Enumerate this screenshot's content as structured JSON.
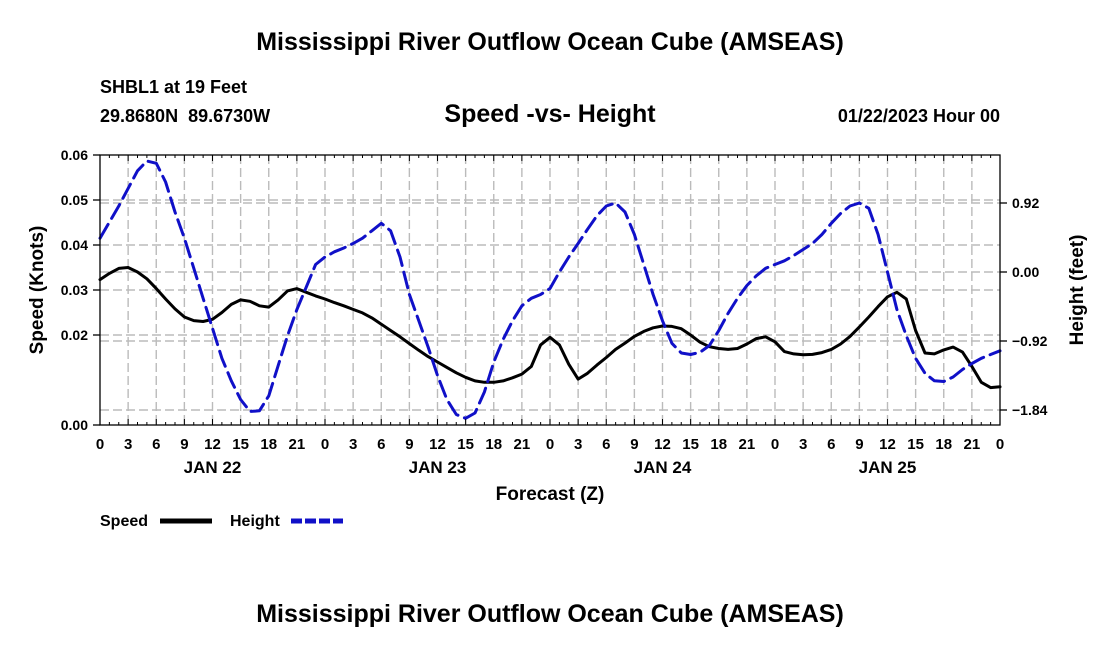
{
  "header": {
    "title": "Mississippi River Outflow Ocean Cube (AMSEAS)",
    "station": "SHBL1 at 19 Feet",
    "coords": "29.8680N  89.6730W",
    "subtitle": "Speed -vs- Height",
    "date": "01/22/2023 Hour 00"
  },
  "footer": {
    "title": "Mississippi River Outflow Ocean Cube (AMSEAS)"
  },
  "colors": {
    "speed": "#000000",
    "height": "#1010c8",
    "grid": "#bbbbbb"
  },
  "chart_data": {
    "type": "line",
    "title": "Speed -vs- Height",
    "xlabel": "Forecast (Z)",
    "ylabel": "Speed (Knots)",
    "y2label": "Height (feet)",
    "xlim": [
      0,
      96
    ],
    "ylim": [
      0,
      0.06
    ],
    "y2lim": [
      -2.04,
      1.56
    ],
    "x_tick_labels": [
      "0",
      "3",
      "6",
      "9",
      "12",
      "15",
      "18",
      "21",
      "0",
      "3",
      "6",
      "9",
      "12",
      "15",
      "18",
      "21",
      "0",
      "3",
      "6",
      "9",
      "12",
      "15",
      "18",
      "21",
      "0",
      "3",
      "6",
      "9",
      "12",
      "15",
      "18",
      "21",
      "0"
    ],
    "day_labels": [
      {
        "x": 12,
        "label": "JAN 22"
      },
      {
        "x": 36,
        "label": "JAN 23"
      },
      {
        "x": 60,
        "label": "JAN 24"
      },
      {
        "x": 84,
        "label": "JAN 25"
      }
    ],
    "y_ticks": [
      {
        "v": 0,
        "label": "0.00"
      },
      {
        "v": 0.02,
        "label": "0.02"
      },
      {
        "v": 0.03,
        "label": "0.03"
      },
      {
        "v": 0.04,
        "label": "0.04"
      },
      {
        "v": 0.05,
        "label": "0.05"
      },
      {
        "v": 0.06,
        "label": "0.06"
      }
    ],
    "y2_ticks": [
      {
        "v": 0.92,
        "label": "0.92"
      },
      {
        "v": 0.0,
        "label": "0.00"
      },
      {
        "v": -0.92,
        "label": "−0.92"
      },
      {
        "v": -1.84,
        "label": "−1.84"
      }
    ],
    "legend": [
      {
        "name": "Speed",
        "style": "solid"
      },
      {
        "name": "Height",
        "style": "dashed"
      }
    ],
    "series": [
      {
        "name": "Speed",
        "axis": "left",
        "x": [
          0,
          1,
          2,
          3,
          4,
          5,
          6,
          7,
          8,
          9,
          10,
          11,
          12,
          13,
          14,
          15,
          16,
          17,
          18,
          19,
          20,
          21,
          22,
          23,
          24,
          25,
          26,
          27,
          28,
          29,
          30,
          31,
          32,
          33,
          34,
          35,
          36,
          37,
          38,
          39,
          40,
          41,
          42,
          43,
          44,
          45,
          46,
          47,
          48,
          49,
          50,
          51,
          52,
          53,
          54,
          55,
          56,
          57,
          58,
          59,
          60,
          61,
          62,
          63,
          64,
          65,
          66,
          67,
          68,
          69,
          70,
          71,
          72,
          73,
          74,
          75,
          76,
          77,
          78,
          79,
          80,
          81,
          82,
          83,
          84,
          85,
          86,
          87,
          88,
          89,
          90,
          91,
          92,
          93,
          94,
          95,
          96
        ],
        "values": [
          0.0323,
          0.0337,
          0.0348,
          0.035,
          0.034,
          0.0325,
          0.0303,
          0.028,
          0.0258,
          0.024,
          0.0232,
          0.023,
          0.0235,
          0.025,
          0.0268,
          0.0278,
          0.0275,
          0.0265,
          0.0262,
          0.0278,
          0.0298,
          0.0303,
          0.0295,
          0.0287,
          0.028,
          0.0272,
          0.0265,
          0.0257,
          0.0249,
          0.0238,
          0.0224,
          0.021,
          0.0196,
          0.0181,
          0.0166,
          0.0152,
          0.014,
          0.0128,
          0.0116,
          0.0106,
          0.0098,
          0.0095,
          0.0095,
          0.0098,
          0.0105,
          0.0113,
          0.013,
          0.0178,
          0.0195,
          0.0178,
          0.0135,
          0.0102,
          0.0115,
          0.0133,
          0.015,
          0.0168,
          0.0182,
          0.0197,
          0.0208,
          0.0216,
          0.022,
          0.0219,
          0.0214,
          0.02,
          0.0184,
          0.0174,
          0.017,
          0.0168,
          0.017,
          0.018,
          0.0192,
          0.0196,
          0.0185,
          0.0163,
          0.0158,
          0.0156,
          0.0157,
          0.0161,
          0.0168,
          0.018,
          0.0197,
          0.0218,
          0.024,
          0.0263,
          0.0285,
          0.0295,
          0.028,
          0.021,
          0.016,
          0.0158,
          0.0167,
          0.0173,
          0.0162,
          0.013,
          0.0095,
          0.0083,
          0.0085
        ]
      },
      {
        "name": "Height",
        "axis": "right",
        "x": [
          0,
          2,
          4,
          5,
          6,
          7,
          8,
          9,
          10,
          11,
          12,
          13,
          14,
          15,
          16,
          17,
          18,
          19,
          20,
          21,
          22,
          23,
          24,
          25,
          26,
          27,
          28,
          29,
          30,
          31,
          32,
          33,
          34,
          35,
          36,
          37,
          38,
          39,
          40,
          41,
          42,
          43,
          44,
          45,
          46,
          47,
          48,
          49,
          50,
          51,
          52,
          53,
          54,
          55,
          56,
          57,
          58,
          59,
          60,
          61,
          62,
          63,
          64,
          65,
          66,
          67,
          68,
          69,
          70,
          71,
          72,
          73,
          74,
          75,
          76,
          77,
          78,
          79,
          80,
          81,
          82,
          83,
          84,
          85,
          86,
          87,
          88,
          89,
          90,
          91,
          92,
          93,
          94,
          95,
          96
        ],
        "values": [
          0.45,
          0.88,
          1.35,
          1.48,
          1.45,
          1.2,
          0.8,
          0.45,
          0.05,
          -0.35,
          -0.75,
          -1.15,
          -1.45,
          -1.7,
          -1.86,
          -1.85,
          -1.65,
          -1.25,
          -0.85,
          -0.5,
          -0.2,
          0.1,
          0.2,
          0.27,
          0.32,
          0.38,
          0.45,
          0.55,
          0.65,
          0.55,
          0.2,
          -0.3,
          -0.65,
          -1.0,
          -1.38,
          -1.7,
          -1.9,
          -1.95,
          -1.88,
          -1.6,
          -1.2,
          -0.9,
          -0.65,
          -0.45,
          -0.35,
          -0.3,
          -0.22,
          0.0,
          0.2,
          0.38,
          0.57,
          0.75,
          0.88,
          0.92,
          0.8,
          0.5,
          0.1,
          -0.3,
          -0.65,
          -0.95,
          -1.08,
          -1.1,
          -1.07,
          -0.98,
          -0.78,
          -0.55,
          -0.35,
          -0.18,
          -0.05,
          0.05,
          0.1,
          0.15,
          0.22,
          0.3,
          0.38,
          0.5,
          0.65,
          0.78,
          0.88,
          0.92,
          0.85,
          0.5,
          0.0,
          -0.5,
          -0.85,
          -1.15,
          -1.35,
          -1.45,
          -1.46,
          -1.4,
          -1.3,
          -1.22,
          -1.15,
          -1.1,
          -1.05
        ]
      }
    ]
  }
}
